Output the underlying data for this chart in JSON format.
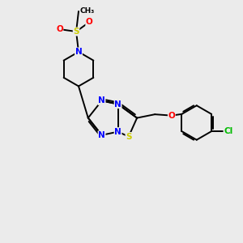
{
  "bg_color": "#ebebeb",
  "bond_color": "#000000",
  "atom_colors": {
    "N": "#0000ff",
    "S": "#cccc00",
    "O": "#ff0000",
    "Cl": "#00bb00",
    "C": "#000000"
  },
  "bond_lw": 1.4,
  "fontsize": 7.5
}
